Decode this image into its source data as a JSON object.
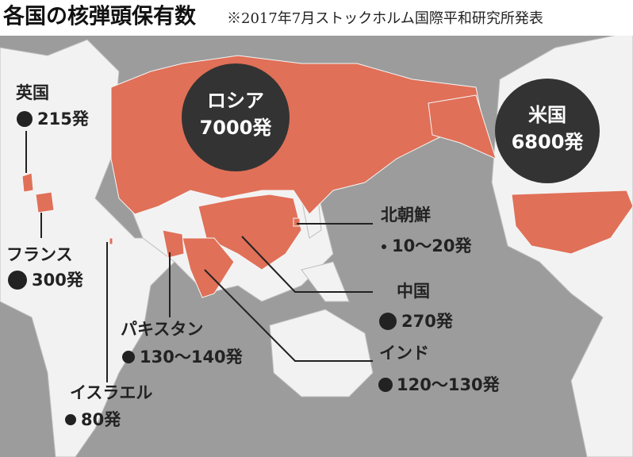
{
  "header": {
    "title": "各国の核弾頭保有数",
    "source": "※2017年7月ストックホルム国際平和研究所発表"
  },
  "countries": [
    {
      "name": "ロシア",
      "count": "7000発"
    },
    {
      "name": "米国",
      "count": "6800発"
    },
    {
      "name": "英国",
      "count": "215発"
    },
    {
      "name": "フランス",
      "count": "300発"
    },
    {
      "name": "中国",
      "count": "270発"
    },
    {
      "name": "北朝鮮",
      "count": "10～20発"
    },
    {
      "name": "インド",
      "count": "120～130発"
    },
    {
      "name": "パキスタン",
      "count": "130～140発"
    },
    {
      "name": "イスラエル",
      "count": "80発"
    }
  ]
}
